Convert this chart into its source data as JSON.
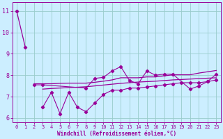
{
  "xlabel": "Windchill (Refroidissement éolien,°C)",
  "x": [
    0,
    1,
    2,
    3,
    4,
    5,
    6,
    7,
    8,
    9,
    10,
    11,
    12,
    13,
    14,
    15,
    16,
    17,
    18,
    19,
    20,
    21,
    22,
    23
  ],
  "line_top": [
    11.0,
    9.3,
    null,
    null,
    null,
    null,
    null,
    null,
    null,
    null,
    null,
    null,
    null,
    null,
    null,
    null,
    null,
    null,
    null,
    null,
    null,
    null,
    null,
    null
  ],
  "line_mid": [
    null,
    null,
    7.55,
    7.55,
    null,
    null,
    null,
    null,
    7.4,
    7.85,
    7.9,
    8.2,
    8.4,
    7.75,
    7.6,
    8.2,
    8.0,
    8.05,
    8.05,
    null,
    7.35,
    7.5,
    7.7,
    8.05
  ],
  "line_smooth_top": [
    null,
    null,
    7.6,
    7.6,
    7.6,
    7.62,
    7.63,
    7.63,
    7.63,
    7.67,
    7.72,
    7.78,
    7.88,
    7.88,
    7.88,
    7.92,
    7.92,
    7.97,
    8.02,
    8.02,
    8.02,
    8.1,
    8.16,
    8.22
  ],
  "line_smooth_bot": [
    null,
    null,
    null,
    7.35,
    7.38,
    7.4,
    7.42,
    7.44,
    7.46,
    7.5,
    7.54,
    7.58,
    7.62,
    7.65,
    7.68,
    7.7,
    7.72,
    7.75,
    7.78,
    7.8,
    7.82,
    7.84,
    7.86,
    7.88
  ],
  "line_bot": [
    null,
    null,
    null,
    6.5,
    7.2,
    6.2,
    7.2,
    6.5,
    6.3,
    6.7,
    7.1,
    7.3,
    7.3,
    7.4,
    7.4,
    7.45,
    7.5,
    7.55,
    7.6,
    7.65,
    7.65,
    7.65,
    7.7,
    7.78
  ],
  "bg_color": "#cceeff",
  "grid_color": "#99cccc",
  "line_color": "#990099",
  "ylim": [
    5.8,
    11.4
  ],
  "yticks": [
    6,
    7,
    8,
    9,
    10,
    11
  ],
  "xticks": [
    0,
    1,
    2,
    3,
    4,
    5,
    6,
    7,
    8,
    9,
    10,
    11,
    12,
    13,
    14,
    15,
    16,
    17,
    18,
    19,
    20,
    21,
    22,
    23
  ]
}
